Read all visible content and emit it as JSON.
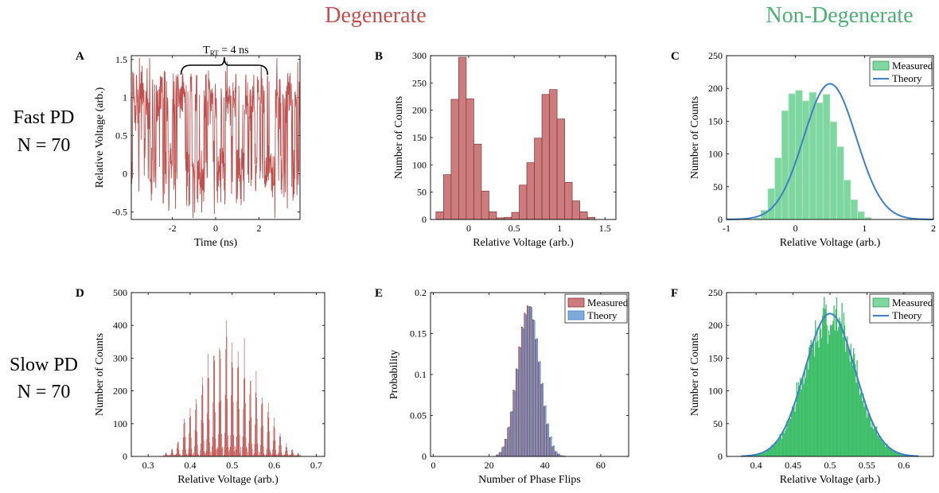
{
  "figure": {
    "col_titles": {
      "left": "Degenerate",
      "right": "Non-Degenerate"
    },
    "row_labels": {
      "top": [
        "Fast PD",
        "N = 70"
      ],
      "bottom": [
        "Slow PD",
        "N = 70"
      ]
    },
    "colors": {
      "degenerate": "#c0504d",
      "degenerate_fill": "#cd7b7c",
      "nondeg_fill": "#7fd7a0",
      "nondeg_edge": "#3a9a5a",
      "theory_line": "#3f7ec9",
      "theory_fill": "#7fa9d9",
      "title_red": "#c0504d",
      "title_green": "#4caf73"
    }
  },
  "chart_data": [
    {
      "id": "A",
      "panel_letter": "A",
      "type": "line",
      "xlabel": "Time (ns)",
      "ylabel": "Relative Voltage (arb.)",
      "xlim": [
        -3.9,
        3.9
      ],
      "ylim": [
        -0.6,
        1.55
      ],
      "xticks": [
        -2,
        0,
        2
      ],
      "xtick_labels": [
        "-2",
        "0",
        "2"
      ],
      "yticks": [
        -0.5,
        0,
        0.5,
        1,
        1.5
      ],
      "ytick_labels": [
        "-0.5",
        "0",
        "0.5",
        "1",
        "1.5"
      ],
      "annotation": {
        "text_main": "T",
        "text_sub": "RT",
        "text_rest": " = 4 ns",
        "x_start": -1.6,
        "x_end": 2.4
      },
      "series": [
        {
          "samples": 600,
          "levels": [
            0,
            1
          ],
          "noise": 0.22
        }
      ]
    },
    {
      "id": "B",
      "panel_letter": "B",
      "type": "bar",
      "xlabel": "Relative Voltage (arb.)",
      "ylabel": "Number of Counts",
      "xlim": [
        -0.42,
        1.62
      ],
      "ylim": [
        0,
        300
      ],
      "xticks": [
        0,
        0.5,
        1,
        1.5
      ],
      "xtick_labels": [
        "0",
        "0.5",
        "1",
        "1.5"
      ],
      "yticks": [
        0,
        50,
        100,
        150,
        200,
        250,
        300
      ],
      "ytick_labels": [
        "0",
        "50",
        "100",
        "150",
        "200",
        "250",
        "300"
      ],
      "bin_start": -0.36,
      "bin_width": 0.0833,
      "values": [
        14,
        82,
        220,
        297,
        221,
        138,
        52,
        14,
        3,
        4,
        13,
        63,
        104,
        149,
        229,
        238,
        184,
        68,
        34,
        14,
        4
      ]
    },
    {
      "id": "C",
      "panel_letter": "C",
      "type": "bar",
      "xlabel": "Relative Voltage (arb.)",
      "ylabel": "Number of Counts",
      "xlim": [
        -1,
        2
      ],
      "ylim": [
        0,
        250
      ],
      "xticks": [
        -1,
        0,
        1,
        2
      ],
      "xtick_labels": [
        "-1",
        "0",
        "1",
        "2"
      ],
      "yticks": [
        0,
        50,
        100,
        150,
        200,
        250
      ],
      "ytick_labels": [
        "0",
        "50",
        "100",
        "150",
        "200",
        "250"
      ],
      "bin_start": -0.6,
      "bin_width": 0.1,
      "values": [
        2,
        14,
        47,
        94,
        166,
        192,
        197,
        181,
        194,
        178,
        191,
        149,
        111,
        60,
        30,
        12,
        3
      ],
      "theory": {
        "mu": 0.5,
        "sigma": 0.38,
        "peak": 207
      },
      "legend": [
        "Measured",
        "Theory"
      ],
      "legend_position": "top-right"
    },
    {
      "id": "D",
      "panel_letter": "D",
      "type": "bar",
      "xlabel": "Relative Voltage (arb.)",
      "ylabel": "Number of Counts",
      "xlim": [
        0.26,
        0.72
      ],
      "ylim": [
        0,
        500
      ],
      "xticks": [
        0.3,
        0.4,
        0.5,
        0.6,
        0.7
      ],
      "xtick_labels": [
        "0.3",
        "0.4",
        "0.5",
        "0.6",
        "0.7"
      ],
      "yticks": [
        0,
        100,
        200,
        300,
        400,
        500
      ],
      "ytick_labels": [
        "0",
        "100",
        "200",
        "300",
        "400",
        "500"
      ],
      "peak_positions": [
        0.343,
        0.357,
        0.371,
        0.386,
        0.4,
        0.414,
        0.429,
        0.443,
        0.457,
        0.471,
        0.486,
        0.5,
        0.514,
        0.529,
        0.543,
        0.557,
        0.571,
        0.586,
        0.6,
        0.614,
        0.629,
        0.643,
        0.657
      ],
      "peak_heights": [
        12,
        25,
        55,
        125,
        152,
        200,
        270,
        300,
        360,
        385,
        430,
        400,
        365,
        352,
        275,
        248,
        200,
        160,
        118,
        72,
        40,
        25,
        12
      ]
    },
    {
      "id": "E",
      "panel_letter": "E",
      "type": "bar",
      "xlabel": "Number of Phase Flips",
      "ylabel": "Probability",
      "xlim": [
        -1,
        70
      ],
      "ylim": [
        0,
        0.2
      ],
      "xticks": [
        0,
        20,
        40,
        60
      ],
      "xtick_labels": [
        "0",
        "20",
        "40",
        "60"
      ],
      "yticks": [
        0,
        0.05,
        0.1,
        0.15,
        0.2
      ],
      "ytick_labels": [
        "0",
        "0.05",
        "0.1",
        "0.15",
        "0.2"
      ],
      "categories": [
        23,
        24,
        25,
        26,
        27,
        28,
        29,
        30,
        31,
        32,
        33,
        34,
        35,
        36,
        37,
        38,
        39,
        40,
        41,
        42,
        43,
        44,
        45,
        46,
        47
      ],
      "series": [
        {
          "name": "Measured",
          "values": [
            0.002,
            0.005,
            0.011,
            0.021,
            0.035,
            0.054,
            0.081,
            0.107,
            0.134,
            0.158,
            0.175,
            0.184,
            0.183,
            0.167,
            0.143,
            0.115,
            0.088,
            0.061,
            0.039,
            0.023,
            0.012,
            0.006,
            0.003,
            0.001,
            0.0005
          ]
        },
        {
          "name": "Theory",
          "values": [
            0.002,
            0.005,
            0.012,
            0.021,
            0.036,
            0.055,
            0.08,
            0.106,
            0.133,
            0.156,
            0.173,
            0.183,
            0.182,
            0.166,
            0.144,
            0.116,
            0.089,
            0.062,
            0.04,
            0.024,
            0.013,
            0.006,
            0.003,
            0.001,
            0.0005
          ]
        }
      ],
      "legend": [
        "Measured",
        "Theory"
      ],
      "legend_position": "top-right"
    },
    {
      "id": "F",
      "panel_letter": "F",
      "type": "bar",
      "xlabel": "Relative Voltage (arb.)",
      "ylabel": "Number of Counts",
      "xlim": [
        0.36,
        0.64
      ],
      "ylim": [
        0,
        250
      ],
      "xticks": [
        0.4,
        0.45,
        0.5,
        0.55,
        0.6
      ],
      "xtick_labels": [
        "0.4",
        "0.45",
        "0.5",
        "0.55",
        "0.6"
      ],
      "yticks": [
        0,
        50,
        100,
        150,
        200,
        250
      ],
      "ytick_labels": [
        "0",
        "50",
        "100",
        "150",
        "200",
        "250"
      ],
      "hist_range": [
        0.38,
        0.62
      ],
      "hist_bins": 200,
      "noise": 0.1,
      "theory": {
        "mu": 0.5,
        "sigma": 0.034,
        "peak": 218
      },
      "legend": [
        "Measured",
        "Theory"
      ],
      "legend_position": "top-right"
    }
  ]
}
